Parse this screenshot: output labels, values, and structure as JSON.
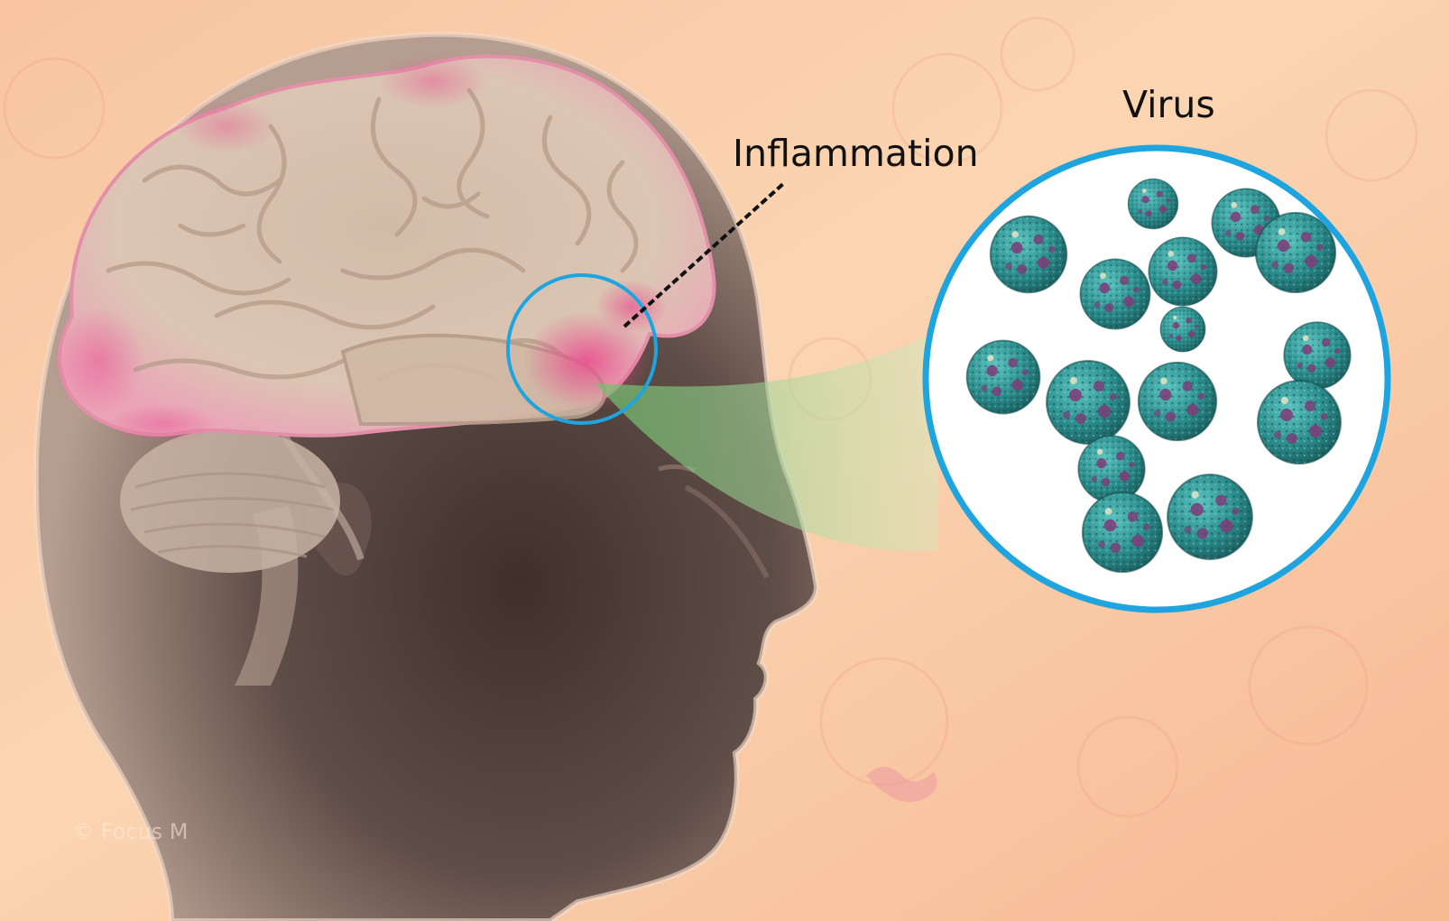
{
  "labels": {
    "inflammation": "Inflammation",
    "virus": "Virus"
  },
  "watermark": "© Focus M",
  "colors": {
    "background_light": "#fbd7b3",
    "background_warm": "#f6b894",
    "head_silhouette": "#5a4a44",
    "brain_base": "#d9c2b0",
    "brain_inflamed": "#ec6fa0",
    "callout_ring": "#1ea4de",
    "callout_beam": "#9fd48a",
    "virus_particle": "#2f9c9a",
    "virus_spot": "#7e3a78",
    "label_text": "#111111"
  },
  "icons": {
    "brain": "brain-icon",
    "virus": "virus-particle-icon",
    "head": "human-head-profile"
  }
}
